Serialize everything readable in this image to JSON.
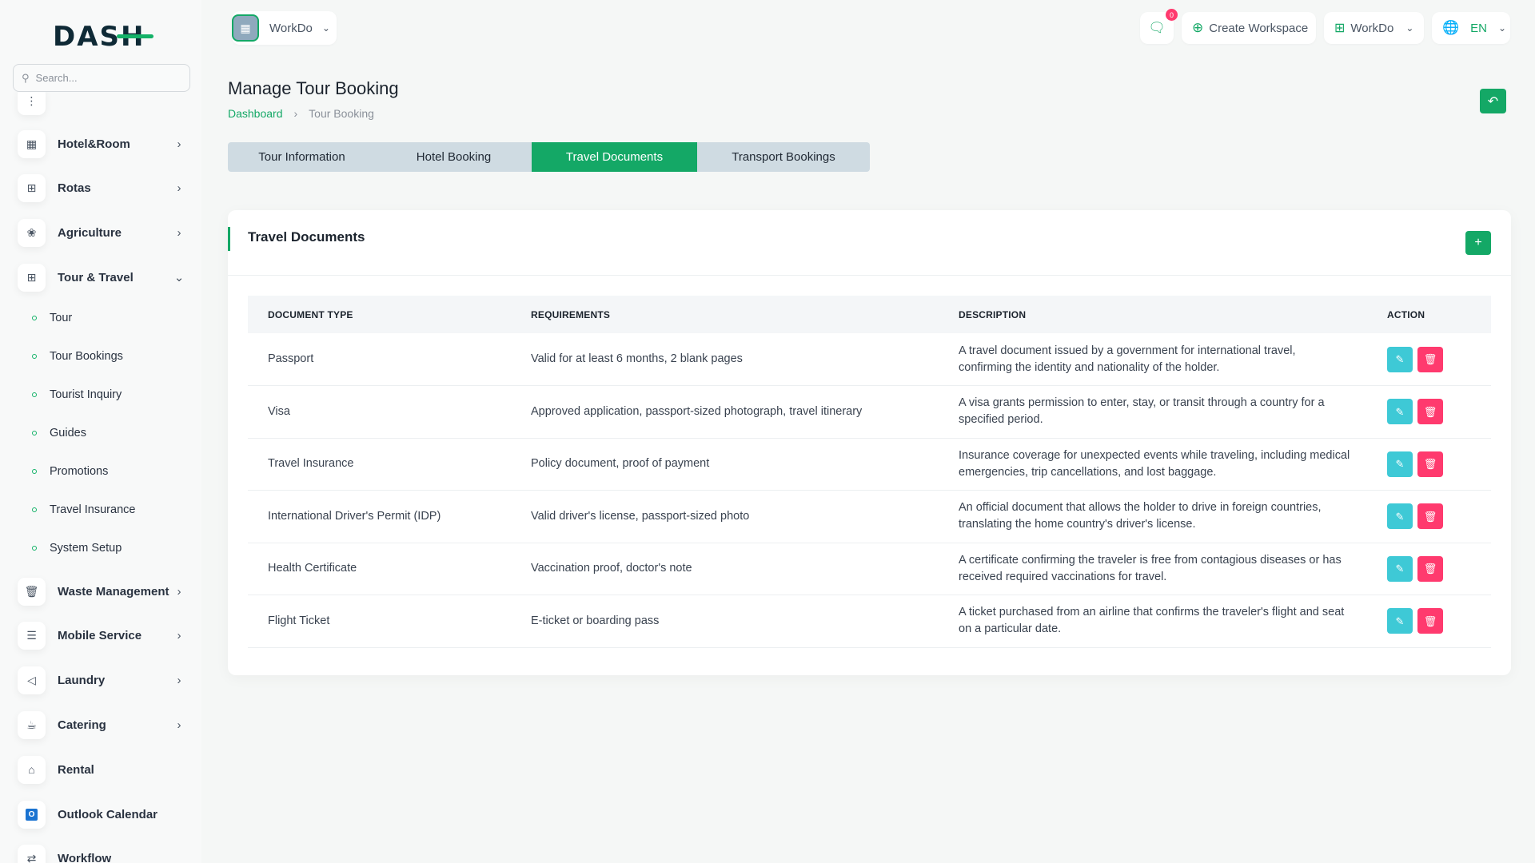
{
  "brand": {
    "logo_text": "DASH",
    "accent": "#14a866"
  },
  "search": {
    "placeholder": "Search..."
  },
  "sidebar": {
    "items": [
      {
        "label": "Hotel&Room",
        "icon": "building-icon",
        "chevron": "right"
      },
      {
        "label": "Rotas",
        "icon": "grid-plus-icon",
        "chevron": "right"
      },
      {
        "label": "Agriculture",
        "icon": "plant-icon",
        "chevron": "right"
      },
      {
        "label": "Tour & Travel",
        "icon": "grid-plus-icon",
        "chevron": "down"
      },
      {
        "label": "Waste Management",
        "icon": "trash-icon",
        "chevron": "right"
      },
      {
        "label": "Mobile Service",
        "icon": "menu-icon",
        "chevron": "right"
      },
      {
        "label": "Laundry",
        "icon": "shirt-icon",
        "chevron": "right"
      },
      {
        "label": "Catering",
        "icon": "coffee-icon",
        "chevron": "right"
      },
      {
        "label": "Rental",
        "icon": "home-icon"
      },
      {
        "label": "Outlook Calendar",
        "icon": "outlook-icon"
      },
      {
        "label": "Workflow",
        "icon": "workflow-icon"
      }
    ],
    "sub_items": [
      "Tour",
      "Tour Bookings",
      "Tourist Inquiry",
      "Guides",
      "Promotions",
      "Travel Insurance",
      "System Setup"
    ]
  },
  "header": {
    "workspace": "WorkDo",
    "chat_count": "0",
    "create_workspace": "Create Workspace",
    "workdo": "WorkDo",
    "language": "EN"
  },
  "page": {
    "title": "Manage Tour Booking",
    "breadcrumb": [
      "Dashboard",
      "Tour Booking"
    ]
  },
  "tabs": [
    {
      "label": "Tour Information"
    },
    {
      "label": "Hotel Booking"
    },
    {
      "label": "Travel Documents",
      "active": true
    },
    {
      "label": "Transport Bookings"
    }
  ],
  "card": {
    "title": "Travel Documents"
  },
  "table": {
    "headers": [
      "DOCUMENT TYPE",
      "REQUIREMENTS",
      "DESCRIPTION",
      "ACTION"
    ],
    "rows": [
      [
        "Passport",
        "Valid for at least 6 months, 2 blank pages",
        "A travel document issued by a government for international travel, confirming the identity and nationality of the holder."
      ],
      [
        "Visa",
        "Approved application, passport-sized photograph, travel itinerary",
        "A visa grants permission to enter, stay, or transit through a country for a specified period."
      ],
      [
        "Travel Insurance",
        "Policy document, proof of payment",
        "Insurance coverage for unexpected events while traveling, including medical emergencies, trip cancellations, and lost baggage."
      ],
      [
        "International Driver's Permit (IDP)",
        "Valid driver's license, passport-sized photo",
        "An official document that allows the holder to drive in foreign countries, translating the home country's driver's license."
      ],
      [
        "Health Certificate",
        "Vaccination proof, doctor's note",
        "A certificate confirming the traveler is free from contagious diseases or has received required vaccinations for travel."
      ],
      [
        "Flight Ticket",
        "E-ticket or boarding pass",
        "A ticket purchased from an airline that confirms the traveler's flight and seat on a particular date."
      ]
    ]
  }
}
